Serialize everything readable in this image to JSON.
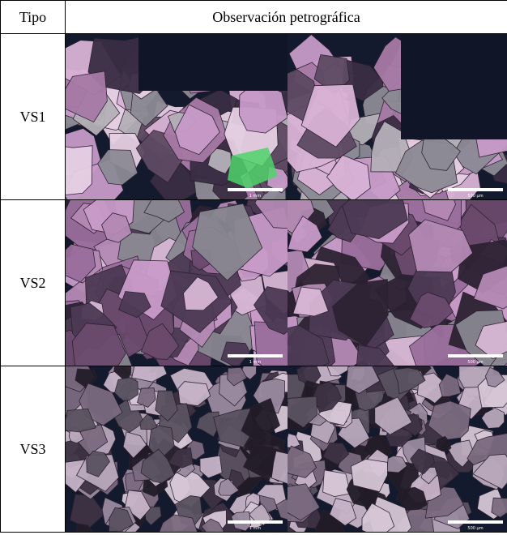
{
  "table": {
    "header": [
      "Tipo",
      "Observación petrográfica"
    ],
    "rows": [
      {
        "type": "VS1",
        "scale_bars": [
          "1 mm",
          "500 µm"
        ]
      },
      {
        "type": "VS2",
        "scale_bars": [
          "1 mm",
          "500 µm"
        ]
      },
      {
        "type": "VS3",
        "scale_bars": [
          "1 mm",
          "500 µm"
        ]
      }
    ]
  }
}
